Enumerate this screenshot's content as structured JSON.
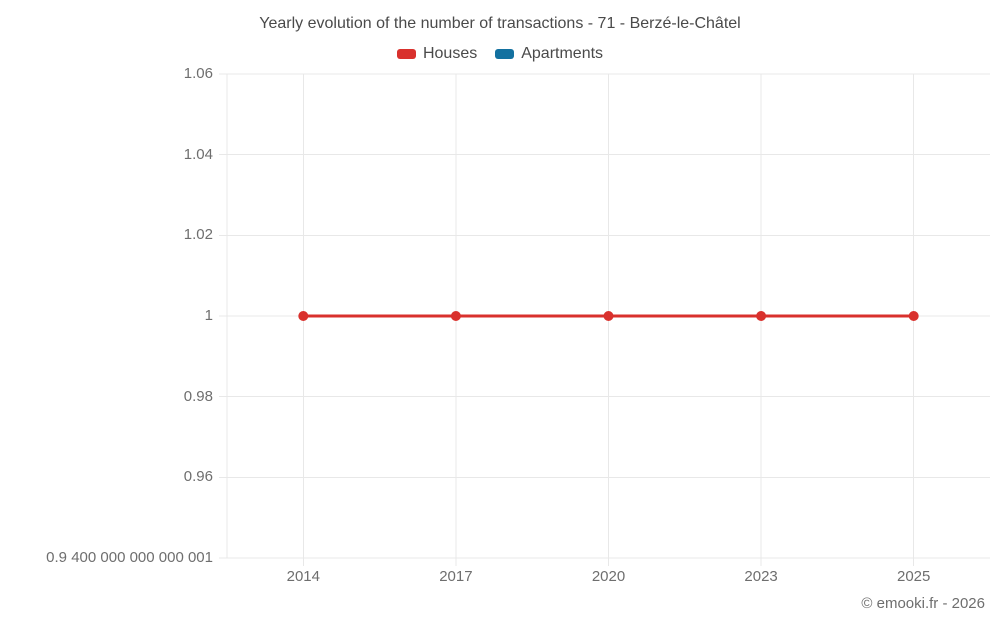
{
  "header": {
    "title": "Yearly evolution of the number of transactions - 71 - Berzé-le-Châtel"
  },
  "chart_data": {
    "type": "line",
    "title": "Yearly evolution of the number of transactions - 71 - Berzé-le-Châtel",
    "categories": [
      "2014",
      "2017",
      "2020",
      "2023",
      "2025"
    ],
    "series": [
      {
        "name": "Houses",
        "color": "#d9312d",
        "values": [
          1,
          1,
          1,
          1,
          1
        ],
        "line_width": 3,
        "point_radius": 5
      },
      {
        "name": "Apartments",
        "color": "#1371a0",
        "values": []
      }
    ],
    "ylim": [
      0.9400000000000001,
      1.06
    ],
    "y_ticks": [
      {
        "value": 1.06,
        "label": "1.06"
      },
      {
        "value": 1.04,
        "label": "1.04"
      },
      {
        "value": 1.02,
        "label": "1.02"
      },
      {
        "value": 1.0,
        "label": "1"
      },
      {
        "value": 0.98,
        "label": "0.98"
      },
      {
        "value": 0.96,
        "label": "0.96"
      },
      {
        "value": 0.9400000000000001,
        "label": "0.9 400 000 000 000 001"
      }
    ],
    "grid": true,
    "legend_position": "top",
    "colors": {
      "gridline": "#e8e8e8",
      "axis_label": "#6e6e6e",
      "title": "#4a4a4a"
    }
  },
  "footer": {
    "copyright": "© emooki.fr - 2026"
  }
}
